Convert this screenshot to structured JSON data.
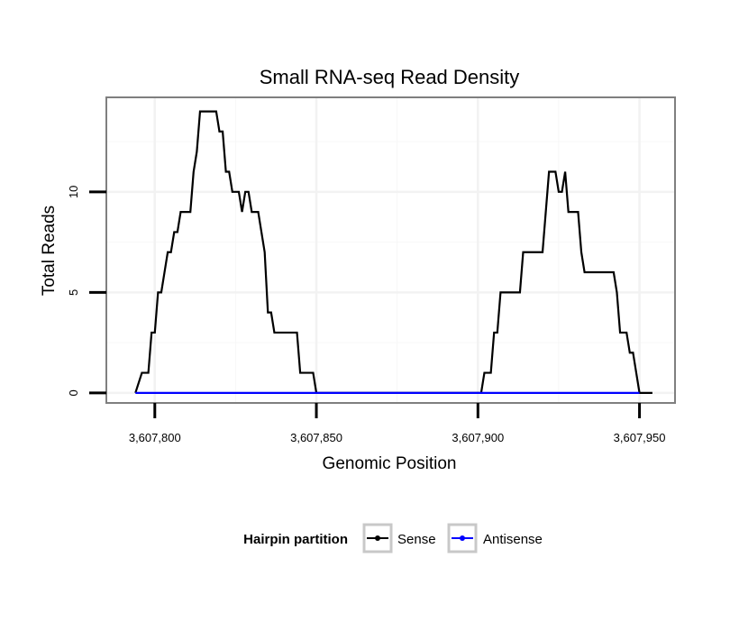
{
  "chart_data": {
    "type": "line",
    "title": "Small RNA-seq Read Density",
    "xlabel": "Genomic Position",
    "ylabel": "Total Reads",
    "xlim": [
      3607785,
      3607961
    ],
    "ylim": [
      -0.5,
      14.7
    ],
    "x_ticks": [
      3607800,
      3607850,
      3607900,
      3607950
    ],
    "x_tick_labels": [
      "3,607,800",
      "3,607,850",
      "3,607,900",
      "3,607,950"
    ],
    "y_ticks": [
      0,
      5,
      10
    ],
    "y_tick_labels": [
      "0",
      "5",
      "10"
    ],
    "grid": true,
    "legend": {
      "title": "Hairpin partition",
      "position": "bottom",
      "entries": [
        {
          "name": "Sense",
          "color": "#000000"
        },
        {
          "name": "Antisense",
          "color": "#0000ff"
        }
      ]
    },
    "series": [
      {
        "name": "Sense",
        "color": "#000000",
        "x": [
          3607794,
          3607796,
          3607798,
          3607799,
          3607800,
          3607801,
          3607802,
          3607803,
          3607804,
          3607805,
          3607806,
          3607807,
          3607808,
          3607809,
          3607810,
          3607811,
          3607812,
          3607813,
          3607814,
          3607815,
          3607816,
          3607817,
          3607818,
          3607819,
          3607820,
          3607821,
          3607822,
          3607823,
          3607824,
          3607825,
          3607826,
          3607827,
          3607828,
          3607829,
          3607830,
          3607831,
          3607832,
          3607833,
          3607834,
          3607835,
          3607836,
          3607837,
          3607838,
          3607839,
          3607840,
          3607841,
          3607842,
          3607843,
          3607844,
          3607845,
          3607846,
          3607847,
          3607848,
          3607849,
          3607850,
          3607870,
          3607890,
          3607901,
          3607902,
          3607903,
          3607904,
          3607905,
          3607906,
          3607907,
          3607908,
          3607909,
          3607910,
          3607911,
          3607912,
          3607913,
          3607914,
          3607915,
          3607916,
          3607917,
          3607918,
          3607919,
          3607920,
          3607921,
          3607922,
          3607923,
          3607924,
          3607925,
          3607926,
          3607927,
          3607928,
          3607929,
          3607930,
          3607931,
          3607932,
          3607933,
          3607934,
          3607935,
          3607936,
          3607937,
          3607938,
          3607939,
          3607940,
          3607941,
          3607942,
          3607943,
          3607944,
          3607945,
          3607946,
          3607947,
          3607948,
          3607949,
          3607950,
          3607951,
          3607952,
          3607953,
          3607954
        ],
        "values": [
          0,
          1,
          1,
          3,
          3,
          5,
          5,
          6,
          7,
          7,
          8,
          8,
          9,
          9,
          9,
          9,
          11,
          12,
          14,
          14,
          14,
          14,
          14,
          14,
          13,
          13,
          11,
          11,
          10,
          10,
          10,
          9,
          10,
          10,
          9,
          9,
          9,
          8,
          7,
          4,
          4,
          3,
          3,
          3,
          3,
          3,
          3,
          3,
          3,
          1,
          1,
          1,
          1,
          1,
          0,
          0,
          0,
          0,
          1,
          1,
          1,
          3,
          3,
          5,
          5,
          5,
          5,
          5,
          5,
          5,
          7,
          7,
          7,
          7,
          7,
          7,
          7,
          9,
          11,
          11,
          11,
          10,
          10,
          11,
          9,
          9,
          9,
          9,
          7,
          6,
          6,
          6,
          6,
          6,
          6,
          6,
          6,
          6,
          6,
          5,
          3,
          3,
          3,
          2,
          2,
          1,
          0,
          0,
          0,
          0,
          0
        ]
      },
      {
        "name": "Antisense",
        "color": "#0000ff",
        "x": [
          3607794,
          3607950
        ],
        "values": [
          0,
          0
        ]
      }
    ]
  }
}
